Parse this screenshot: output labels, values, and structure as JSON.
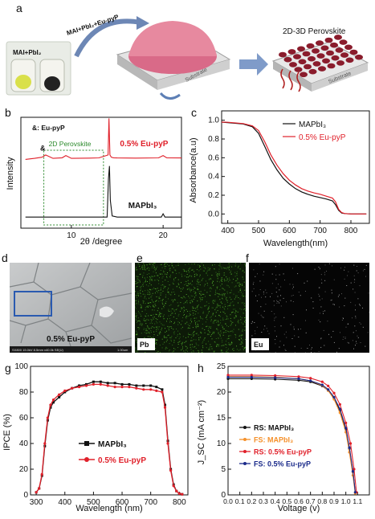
{
  "panel_labels": {
    "a": "a",
    "b": "b",
    "c": "c",
    "d": "d",
    "e": "e",
    "f": "f",
    "g": "g",
    "h": "h"
  },
  "scheme": {
    "vial_label": "MAI+PbI₂",
    "arrow_label": "MAI+PbI₂+Eu-pyP",
    "substrate_label": "Substrate",
    "product_title": "2D-3D Perovskite",
    "product_substrate": "Substrate"
  },
  "sem": {
    "caption": "0.5% Eu-pyP",
    "footer": "SX800 15.0kV 8.5mm x40.0k SE(U)",
    "scale": "1.00um"
  },
  "eds": {
    "pb_label": "Pb",
    "eu_label": "Eu"
  },
  "colors": {
    "black": "#111111",
    "red": "#e0202a",
    "orange": "#f5902a",
    "navy": "#1a2a8a",
    "green_box": "#2c8a2c",
    "blue_box": "#2a5ab0",
    "bg": "#ffffff"
  },
  "chart_data": [
    {
      "id": "b",
      "type": "line",
      "xlabel": "2θ /degree",
      "ylabel": "Intensity",
      "xlim": [
        4.5,
        22
      ],
      "xticks": [
        10,
        20
      ],
      "legend_note": "&: Eu-pyP",
      "box_label": "2D Perovskite",
      "annotation_amp": "&",
      "series": [
        {
          "name": "0.5% Eu-pyP",
          "color": "#e0202a",
          "x": [
            5,
            6,
            6.8,
            7.2,
            8,
            9,
            9.4,
            10,
            12,
            13,
            14,
            14.1,
            14.2,
            14.35,
            14.6,
            15,
            17,
            19.5,
            20,
            20.4,
            22
          ],
          "y": [
            0.62,
            0.63,
            0.64,
            0.66,
            0.63,
            0.635,
            0.655,
            0.63,
            0.632,
            0.634,
            0.66,
            0.99,
            0.66,
            0.64,
            0.635,
            0.633,
            0.632,
            0.634,
            0.655,
            0.634,
            0.633
          ]
        },
        {
          "name": "MAPbI₃",
          "color": "#111111",
          "x": [
            5,
            10,
            13.9,
            14.05,
            14.15,
            14.25,
            14.45,
            15,
            19.8,
            20,
            20.2,
            22
          ],
          "y": [
            0.1,
            0.1,
            0.1,
            0.45,
            0.56,
            0.25,
            0.11,
            0.1,
            0.1,
            0.13,
            0.1,
            0.1
          ]
        }
      ]
    },
    {
      "id": "c",
      "type": "line",
      "xlabel": "Wavelength(nm)",
      "ylabel": "Absorbance(a.u)",
      "xlim": [
        380,
        860
      ],
      "ylim": [
        -0.1,
        1.1
      ],
      "xticks": [
        400,
        500,
        600,
        700,
        800
      ],
      "yticks": [
        0.0,
        0.2,
        0.4,
        0.6,
        0.8,
        1.0
      ],
      "series": [
        {
          "name": "MAPbI₃",
          "color": "#111111",
          "x": [
            380,
            400,
            450,
            480,
            500,
            520,
            540,
            560,
            580,
            600,
            620,
            640,
            660,
            680,
            700,
            720,
            740,
            750,
            760,
            770,
            780,
            800,
            850
          ],
          "y": [
            0.98,
            0.975,
            0.96,
            0.93,
            0.86,
            0.72,
            0.58,
            0.47,
            0.38,
            0.32,
            0.27,
            0.235,
            0.21,
            0.19,
            0.175,
            0.16,
            0.14,
            0.1,
            0.04,
            0.01,
            0.005,
            0.0,
            0.0
          ]
        },
        {
          "name": "0.5% Eu-pyP",
          "color": "#e0202a",
          "x": [
            380,
            400,
            450,
            480,
            500,
            520,
            540,
            560,
            580,
            600,
            620,
            640,
            660,
            680,
            700,
            720,
            740,
            750,
            760,
            770,
            780,
            800,
            850
          ],
          "y": [
            0.98,
            0.978,
            0.965,
            0.94,
            0.89,
            0.77,
            0.63,
            0.52,
            0.43,
            0.36,
            0.31,
            0.27,
            0.245,
            0.225,
            0.21,
            0.19,
            0.17,
            0.13,
            0.05,
            0.015,
            0.005,
            0.0,
            0.0
          ]
        }
      ]
    },
    {
      "id": "g",
      "type": "line",
      "xlabel": "Wavelength (nm)",
      "ylabel": "IPCE (%)",
      "xlim": [
        280,
        830
      ],
      "ylim": [
        0,
        100
      ],
      "xticks": [
        300,
        400,
        500,
        600,
        700,
        800
      ],
      "yticks": [
        0,
        20,
        40,
        60,
        80,
        100
      ],
      "series": [
        {
          "name": "MAPbI₃",
          "color": "#111111",
          "x": [
            300,
            310,
            320,
            330,
            340,
            350,
            360,
            380,
            400,
            425,
            450,
            475,
            500,
            525,
            550,
            575,
            600,
            625,
            650,
            675,
            700,
            720,
            740,
            750,
            760,
            770,
            780,
            790,
            800,
            810
          ],
          "y": [
            2,
            5,
            15,
            38,
            58,
            68,
            72,
            76,
            80,
            83,
            85,
            86,
            88,
            88,
            87,
            87,
            86,
            86,
            85,
            85,
            85,
            84,
            82,
            70,
            42,
            20,
            8,
            3,
            1,
            0.5
          ]
        },
        {
          "name": "0.5% Eu-pyP",
          "color": "#e0202a",
          "x": [
            300,
            310,
            320,
            330,
            340,
            350,
            360,
            380,
            400,
            425,
            450,
            475,
            500,
            525,
            550,
            575,
            600,
            625,
            650,
            675,
            700,
            720,
            740,
            750,
            760,
            770,
            780,
            790,
            800,
            810
          ],
          "y": [
            2,
            5,
            16,
            40,
            60,
            70,
            74,
            78,
            81,
            83,
            84,
            85,
            86,
            86,
            85,
            84,
            84,
            84,
            83,
            82,
            82,
            81,
            80,
            68,
            40,
            19,
            7,
            3,
            1,
            0.5
          ]
        }
      ]
    },
    {
      "id": "h",
      "type": "line",
      "xlabel": "Voltage (v)",
      "ylabel": "J_SC (mA cm⁻²)",
      "xlim": [
        0,
        1.2
      ],
      "ylim": [
        0,
        25
      ],
      "xticks": [
        0.0,
        0.1,
        0.2,
        0.3,
        0.4,
        0.5,
        0.6,
        0.7,
        0.8,
        0.9,
        1.0,
        1.1
      ],
      "yticks": [
        0,
        5,
        10,
        15,
        20,
        25
      ],
      "series": [
        {
          "name": "RS: MAPbI₃",
          "color": "#111111",
          "marker": "circle",
          "x": [
            0,
            0.2,
            0.4,
            0.6,
            0.7,
            0.8,
            0.85,
            0.9,
            0.95,
            1.0,
            1.03,
            1.06,
            1.08
          ],
          "y": [
            22.6,
            22.6,
            22.5,
            22.3,
            22.0,
            21.2,
            20.3,
            18.8,
            16.4,
            12.8,
            9.0,
            4.5,
            0.5
          ]
        },
        {
          "name": "FS: MAPbI₃",
          "color": "#f5902a",
          "marker": "circle",
          "x": [
            0,
            0.2,
            0.4,
            0.6,
            0.7,
            0.8,
            0.85,
            0.9,
            0.95,
            1.0,
            1.03,
            1.06,
            1.08
          ],
          "y": [
            23.0,
            23.0,
            22.9,
            22.6,
            22.2,
            21.3,
            20.3,
            18.6,
            16.0,
            12.2,
            8.3,
            3.8,
            0.3
          ]
        },
        {
          "name": "RS: 0.5% Eu-pyP",
          "color": "#e0202a",
          "marker": "circle",
          "x": [
            0,
            0.2,
            0.4,
            0.6,
            0.7,
            0.8,
            0.85,
            0.9,
            0.95,
            1.0,
            1.04,
            1.07,
            1.09
          ],
          "y": [
            23.3,
            23.3,
            23.2,
            23.0,
            22.7,
            22.0,
            21.2,
            19.8,
            17.6,
            14.0,
            10.0,
            5.0,
            0.5
          ]
        },
        {
          "name": "FS: 0.5% Eu-pyP",
          "color": "#1a2a8a",
          "marker": "circle",
          "x": [
            0,
            0.2,
            0.4,
            0.6,
            0.7,
            0.8,
            0.85,
            0.9,
            0.95,
            1.0,
            1.03,
            1.06,
            1.08
          ],
          "y": [
            22.9,
            22.9,
            22.8,
            22.6,
            22.2,
            21.4,
            20.5,
            19.0,
            16.7,
            13.0,
            9.2,
            4.6,
            0.5
          ]
        }
      ]
    }
  ]
}
